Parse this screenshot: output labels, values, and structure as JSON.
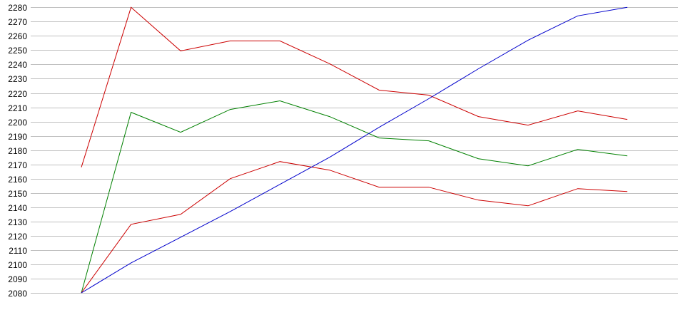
{
  "chart_data": {
    "type": "line",
    "title": "",
    "xlabel": "",
    "ylabel": "",
    "ylim": [
      2080,
      2280
    ],
    "y_ticks": [
      2080,
      2090,
      2100,
      2110,
      2120,
      2130,
      2140,
      2150,
      2160,
      2170,
      2180,
      2190,
      2200,
      2210,
      2220,
      2230,
      2240,
      2250,
      2260,
      2270,
      2280
    ],
    "grid": true,
    "x": [
      1,
      2,
      3,
      4,
      5,
      6,
      7,
      8,
      9,
      10,
      11,
      12
    ],
    "series": [
      {
        "name": "red-upper",
        "color": "#cc0000",
        "values": [
          2168,
          2280,
          2249.5,
          2256.5,
          2256.5,
          2240.5,
          2222,
          2218.5,
          2203.5,
          2197.5,
          2207.5,
          2201.5
        ]
      },
      {
        "name": "green",
        "color": "#008000",
        "values": [
          2080,
          2206.5,
          2192.5,
          2208.5,
          2214.5,
          2203.5,
          2188.5,
          2186.5,
          2174,
          2169,
          2180.5,
          2176
        ]
      },
      {
        "name": "red-lower",
        "color": "#cc0000",
        "values": [
          2080,
          2128,
          2135,
          2160,
          2172,
          2166,
          2154,
          2154,
          2145,
          2141,
          2153,
          2151
        ]
      },
      {
        "name": "blue",
        "color": "#0000cc",
        "values": [
          2080,
          2101,
          2119,
          2137,
          2156,
          2175,
          2196,
          2216,
          2237,
          2257,
          2274,
          2280
        ]
      }
    ]
  }
}
